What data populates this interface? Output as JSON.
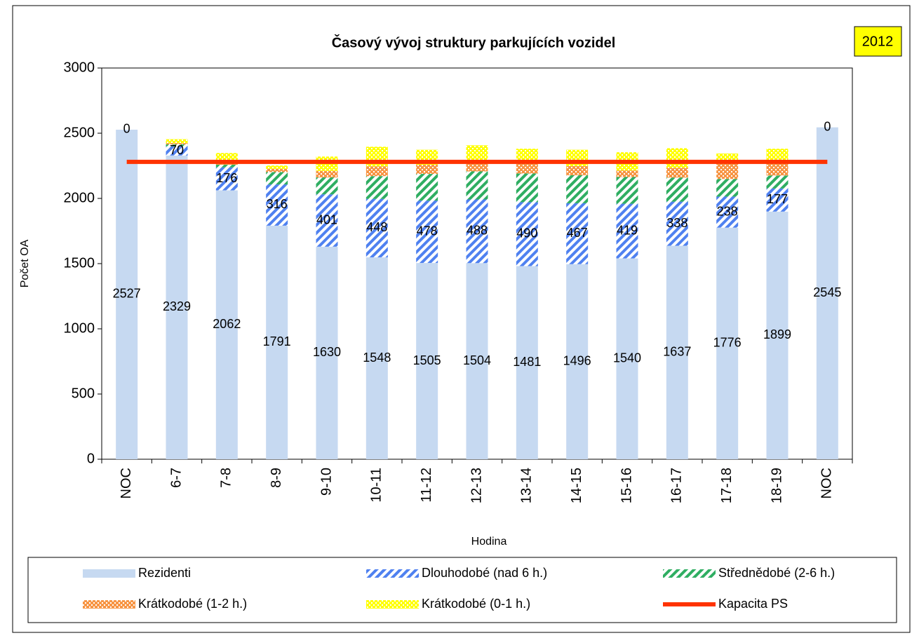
{
  "chart_data": {
    "type": "bar",
    "stacked": true,
    "title": "Časový vývoj struktury parkujících vozidel",
    "badge": "2012",
    "x_label": "Hodina",
    "y_label": "Počet OA",
    "categories": [
      "NOC",
      "6-7",
      "7-8",
      "8-9",
      "9-10",
      "10-11",
      "11-12",
      "12-13",
      "13-14",
      "14-15",
      "15-16",
      "16-17",
      "17-18",
      "18-19",
      "NOC"
    ],
    "ylim": [
      0,
      3000
    ],
    "yticks": [
      0,
      500,
      1000,
      1500,
      2000,
      2500,
      3000
    ],
    "grid": false,
    "legend": "bottom",
    "series": [
      {
        "name": "Rezidenti",
        "color": "#c6d9f1",
        "pattern": "solid",
        "labels": true,
        "values": [
          2527,
          2329,
          2062,
          1791,
          1630,
          1548,
          1505,
          1504,
          1481,
          1496,
          1540,
          1637,
          1776,
          1899,
          2545
        ]
      },
      {
        "name": "Dlouhodobé (nad 6 h.)",
        "color": "#4f81f0",
        "pattern": "diagonal",
        "labels": true,
        "values": [
          0,
          70,
          176,
          316,
          401,
          448,
          478,
          488,
          490,
          467,
          419,
          338,
          238,
          177,
          0
        ]
      },
      {
        "name": "Střednědobé (2-6 h.)",
        "color": "#2fae62",
        "pattern": "diagonal",
        "labels": false,
        "values": [
          0,
          15,
          20,
          95,
          130,
          175,
          205,
          215,
          220,
          215,
          205,
          185,
          135,
          100,
          0
        ]
      },
      {
        "name": "Krátkodobé (1-2 h.)",
        "color": "#f79646",
        "pattern": "dots",
        "labels": false,
        "values": [
          0,
          10,
          30,
          25,
          50,
          75,
          70,
          65,
          80,
          70,
          50,
          75,
          130,
          95,
          0
        ]
      },
      {
        "name": "Krátkodobé (0-1 h.)",
        "color": "#ffff00",
        "pattern": "dots",
        "labels": false,
        "values": [
          0,
          30,
          60,
          25,
          110,
          150,
          115,
          135,
          110,
          125,
          140,
          150,
          65,
          110,
          0
        ]
      },
      {
        "name": "Kapacita PS",
        "color": "#ff3300",
        "type": "line",
        "values": [
          2280,
          2280,
          2280,
          2280,
          2280,
          2280,
          2280,
          2280,
          2280,
          2280,
          2280,
          2280,
          2280,
          2280,
          2280
        ]
      }
    ]
  }
}
